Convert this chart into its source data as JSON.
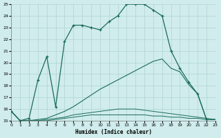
{
  "xlabel": "Humidex (Indice chaleur)",
  "bg_color": "#d0ecec",
  "grid_color": "#b0d4d4",
  "line_color": "#1a6b5a",
  "xlim": [
    0,
    23
  ],
  "ylim": [
    15,
    25
  ],
  "xticks": [
    0,
    1,
    2,
    3,
    4,
    5,
    6,
    7,
    8,
    9,
    10,
    11,
    12,
    13,
    14,
    15,
    16,
    17,
    18,
    19,
    20,
    21,
    22,
    23
  ],
  "yticks": [
    15,
    16,
    17,
    18,
    19,
    20,
    21,
    22,
    23,
    24,
    25
  ],
  "line1_x": [
    0,
    1,
    2,
    3,
    4,
    5,
    6,
    7,
    8,
    9,
    10,
    11,
    12,
    13,
    14,
    15,
    16,
    17,
    18,
    19,
    20,
    21,
    22
  ],
  "line1_y": [
    15.8,
    15.0,
    15.2,
    18.5,
    20.5,
    16.2,
    21.8,
    23.2,
    23.2,
    23.0,
    22.8,
    23.5,
    24.0,
    25.0,
    25.0,
    25.0,
    24.5,
    24.0,
    21.0,
    19.5,
    18.3,
    17.3,
    15.1
  ],
  "line2_x": [
    0,
    1,
    2,
    3,
    4,
    5,
    6,
    7,
    8,
    9,
    10,
    11,
    12,
    13,
    14,
    15,
    16,
    17,
    18,
    19,
    20,
    21,
    22,
    23
  ],
  "line2_y": [
    15.8,
    15.0,
    15.0,
    15.1,
    15.2,
    15.5,
    15.8,
    16.2,
    16.7,
    17.2,
    17.7,
    18.1,
    18.5,
    18.9,
    19.3,
    19.7,
    20.1,
    20.3,
    19.5,
    19.2,
    18.1,
    17.3,
    15.1,
    15.1
  ],
  "line3_x": [
    0,
    1,
    2,
    3,
    4,
    5,
    6,
    7,
    8,
    9,
    10,
    11,
    12,
    13,
    14,
    15,
    16,
    17,
    18,
    19,
    20,
    21,
    22,
    23
  ],
  "line3_y": [
    15.8,
    15.0,
    15.0,
    15.0,
    15.1,
    15.2,
    15.3,
    15.5,
    15.6,
    15.7,
    15.8,
    15.9,
    16.0,
    16.0,
    16.0,
    15.9,
    15.8,
    15.7,
    15.6,
    15.5,
    15.4,
    15.3,
    15.2,
    15.1
  ],
  "line4_x": [
    0,
    1,
    2,
    3,
    4,
    5,
    6,
    7,
    8,
    9,
    10,
    11,
    12,
    13,
    14,
    15,
    16,
    17,
    18,
    19,
    20,
    21,
    22,
    23
  ],
  "line4_y": [
    15.8,
    15.0,
    15.0,
    15.0,
    15.0,
    15.1,
    15.2,
    15.3,
    15.4,
    15.5,
    15.5,
    15.5,
    15.5,
    15.5,
    15.5,
    15.5,
    15.4,
    15.4,
    15.3,
    15.3,
    15.2,
    15.2,
    15.1,
    15.1
  ]
}
